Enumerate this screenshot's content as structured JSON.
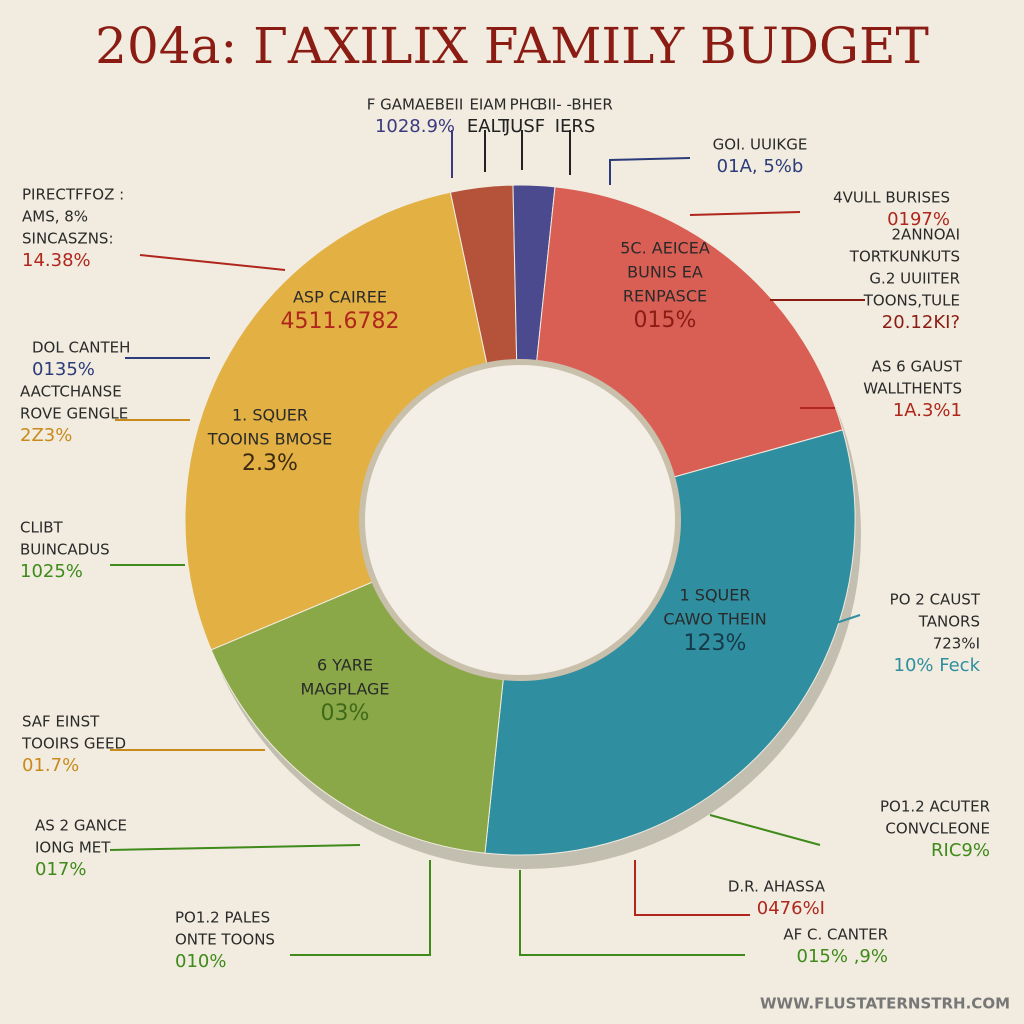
{
  "chart_data": {
    "type": "donut",
    "title": "204a: ΓAXILIX FAMILY BUDGET",
    "values": [
      3,
      2,
      19,
      31,
      17,
      28
    ],
    "colors": [
      "#b5533a",
      "#4b4a8e",
      "#d95f55",
      "#2f8ea0",
      "#8aa848",
      "#e2b043"
    ],
    "slice_labels": [
      {
        "lines": [
          "ASP CAIREE",
          "4511.6782"
        ],
        "color": "#b0261d"
      },
      {
        "lines": [
          "1. SQUER",
          "TOOINS BMOSE",
          "2.3%"
        ],
        "color": "#3a2a10"
      },
      {
        "lines": [
          "5C. AEICEA",
          "BUNIS EA",
          "RENPASCE",
          "015%"
        ],
        "color": "#8b1c14"
      },
      {
        "lines": [
          "1 SQUER",
          "CAWO THEIN",
          "123%"
        ],
        "color": "#173a48"
      },
      {
        "lines": [
          "6 YARE",
          "MAGPLAGE",
          "03%"
        ],
        "color": "#3f6a1a"
      }
    ],
    "annotations": [
      {
        "lines": [
          "F GAMAEBEII",
          "1028.9%"
        ],
        "color": "#3b3a80"
      },
      {
        "lines": [
          "EIAM",
          "EALT"
        ],
        "color": "#222222"
      },
      {
        "lines": [
          "PHC",
          "JUSF"
        ],
        "color": "#222222"
      },
      {
        "lines": [
          "BII- -BHER",
          "IERS"
        ],
        "color": "#222222"
      },
      {
        "lines": [
          "GOI. UUIKGE",
          "01A, 5%b"
        ],
        "color": "#2c3b7a"
      },
      {
        "lines": [
          "4VULL BURISES",
          "0197%"
        ],
        "color": "#b0261d"
      },
      {
        "lines": [
          "2ANNOAI",
          "TORTKUNKUTS",
          "G.2 UUIITER",
          "TOONS,TULE",
          "20.12KI?"
        ],
        "color": "#8b1c14"
      },
      {
        "lines": [
          "AS 6 GAUST",
          "WALLTHENTS",
          "1A.3%1"
        ],
        "color": "#b0261d"
      },
      {
        "lines": [
          "PO 2 CAUST",
          "TANORS",
          "723%I",
          "10% Feck"
        ],
        "color": "#2f8ea0"
      },
      {
        "lines": [
          "PO1.2 ACUTER",
          "CONVCLEONE",
          "RIC9%"
        ],
        "color": "#3f8a1a"
      },
      {
        "lines": [
          "D.R. AHASSA",
          "0476%I"
        ],
        "color": "#b0261d"
      },
      {
        "lines": [
          "AF C. CANTER",
          "015% ,9%"
        ],
        "color": "#3f8a1a"
      },
      {
        "lines": [
          "PIRECTFFOZ :",
          "AMS, 8%",
          "SINCASZNS:",
          "14.38%"
        ],
        "color": "#b0261d"
      },
      {
        "lines": [
          "DOL CANTEH",
          "0135%"
        ],
        "color": "#2c3b7a"
      },
      {
        "lines": [
          "AACTCHANSE",
          "ROVE GENGLE",
          "2Z3%"
        ],
        "color": "#c98a1a"
      },
      {
        "lines": [
          "CLIBT",
          "BUINCADUS",
          "1025%"
        ],
        "color": "#3f8a1a"
      },
      {
        "lines": [
          "SAF EINST",
          "TOOIRS GEED",
          "01.7%"
        ],
        "color": "#c98a1a"
      },
      {
        "lines": [
          "AS 2 GANCE",
          "IONG MET",
          "017%"
        ],
        "color": "#3f8a1a"
      },
      {
        "lines": [
          "PO1.2 PALES",
          "ONTE TOONS",
          "010%"
        ],
        "color": "#3f8a1a"
      }
    ],
    "footer": "WWW.FLUSTATERNSTRH.COM"
  }
}
